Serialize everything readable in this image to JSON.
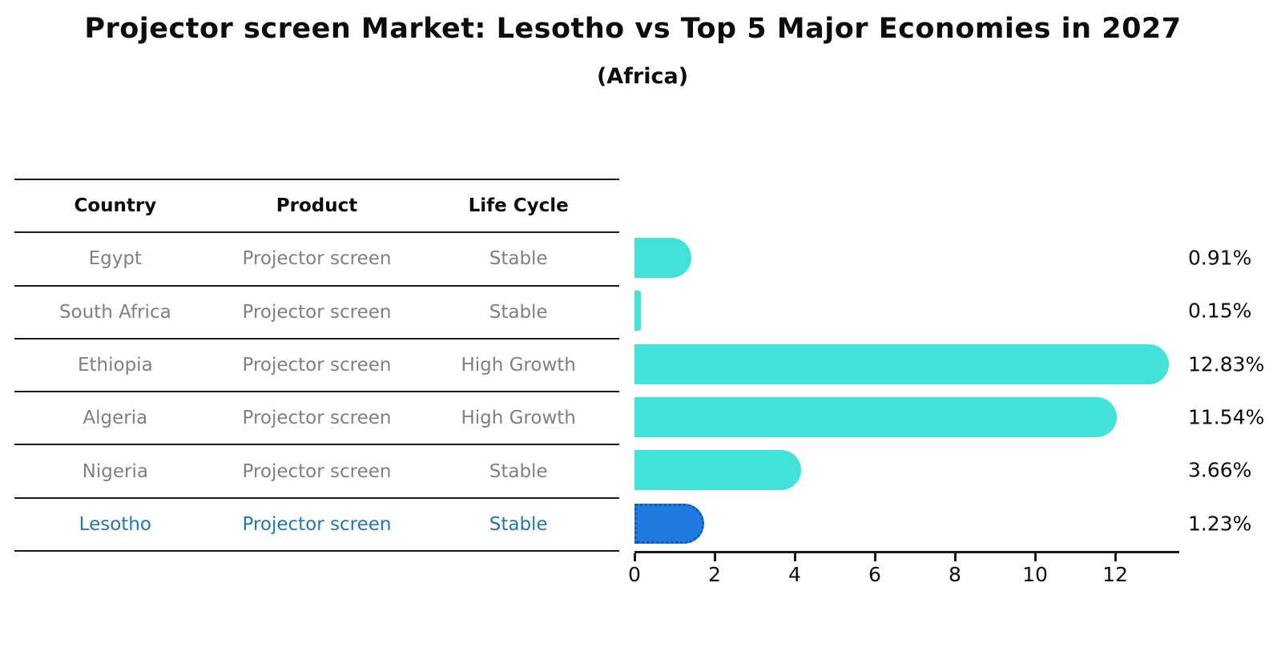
{
  "title": "Projector screen Market: Lesotho vs Top 5 Major Economies in 2027",
  "subtitle": "(Africa)",
  "table": {
    "headers": [
      "Country",
      "Product",
      "Life Cycle"
    ],
    "rows": [
      {
        "country": "Egypt",
        "product": "Projector screen",
        "life_cycle": "Stable",
        "highlight": false
      },
      {
        "country": "South Africa",
        "product": "Projector screen",
        "life_cycle": "Stable",
        "highlight": false
      },
      {
        "country": "Ethiopia",
        "product": "Projector screen",
        "life_cycle": "High Growth",
        "highlight": false
      },
      {
        "country": "Algeria",
        "product": "Projector screen",
        "life_cycle": "High Growth",
        "highlight": false
      },
      {
        "country": "Nigeria",
        "product": "Projector screen",
        "life_cycle": "Stable",
        "highlight": false
      },
      {
        "country": "Lesotho",
        "product": "Projector screen",
        "life_cycle": "Stable",
        "highlight": true
      }
    ]
  },
  "chart_data": {
    "type": "bar",
    "orientation": "horizontal",
    "title": "Projector screen Market: Lesotho vs Top 5 Major Economies in 2027",
    "subtitle": "(Africa)",
    "categories": [
      "Egypt",
      "South Africa",
      "Ethiopia",
      "Algeria",
      "Nigeria",
      "Lesotho"
    ],
    "values": [
      0.91,
      0.15,
      12.83,
      11.54,
      3.66,
      1.23
    ],
    "value_labels": [
      "0.91%",
      "0.15%",
      "12.83%",
      "11.54%",
      "3.66%",
      "1.23%"
    ],
    "x_ticks": [
      0,
      2,
      4,
      6,
      8,
      10,
      12
    ],
    "xlim": [
      0,
      13.5
    ],
    "grid": false,
    "legend": false,
    "bar_color": "#40E2DA",
    "highlight_bar_color": "#1F7BE0",
    "highlight_border_color": "#1457BD",
    "highlight_index": 5
  },
  "colors": {
    "title_text": "#0D0D0D",
    "row_text_gray": "#808080",
    "highlight_text_blue": "#1F77B4",
    "axis_line": "#1A1A1A"
  }
}
